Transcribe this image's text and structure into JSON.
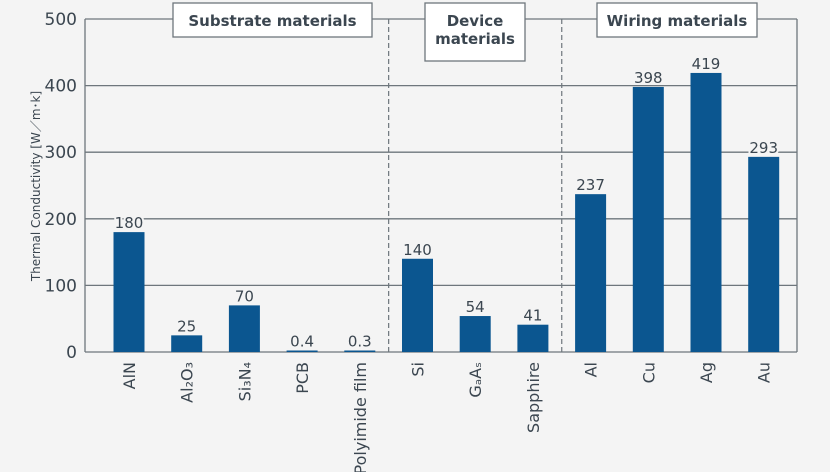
{
  "chart_data": {
    "type": "bar",
    "title": "",
    "xlabel": "",
    "ylabel": "Thermal Conductivity [W／m･k]",
    "ylim": [
      0,
      500
    ],
    "yticks": [
      0,
      100,
      200,
      300,
      400,
      500
    ],
    "grid": true,
    "bar_color": "#0b5690",
    "categories": [
      "AlN",
      "Al₂O₃",
      "Si₃N₄",
      "PCB",
      "Polyimide film",
      "Si",
      "GₐAₛ",
      "Sapphire",
      "Al",
      "Cu",
      "Ag",
      "Au"
    ],
    "values": [
      180,
      25,
      70,
      0.4,
      0.3,
      140,
      54,
      41,
      237,
      398,
      419,
      293
    ],
    "value_labels": [
      "180",
      "25",
      "70",
      "0.4",
      "0.3",
      "140",
      "54",
      "41",
      "237",
      "398",
      "419",
      "293"
    ],
    "groups": [
      {
        "label_lines": [
          "Substrate materials"
        ],
        "start": 0,
        "end": 4
      },
      {
        "label_lines": [
          "Device",
          "materials"
        ],
        "start": 5,
        "end": 7
      },
      {
        "label_lines": [
          "Wiring materials"
        ],
        "start": 8,
        "end": 11
      }
    ]
  }
}
